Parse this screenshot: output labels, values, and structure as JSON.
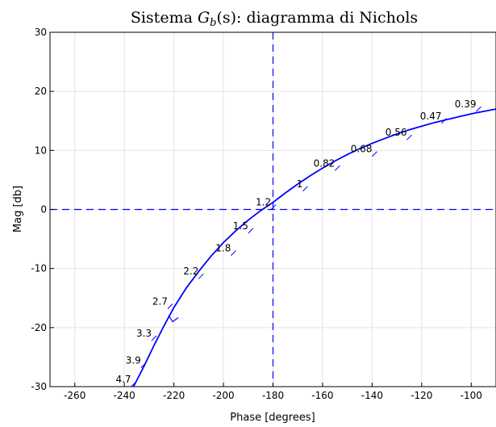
{
  "chart_data": {
    "type": "line",
    "title_prefix": "Sistema ",
    "title_math": "G",
    "title_sub": "b",
    "title_arg": "(s)",
    "title_suffix": ": diagramma di Nichols",
    "xlabel": "Phase [degrees]",
    "ylabel": "Mag [db]",
    "xlim": [
      -270,
      -90
    ],
    "ylim": [
      -30,
      30
    ],
    "xticks": [
      -260,
      -240,
      -220,
      -200,
      -180,
      -160,
      -140,
      -120,
      -100
    ],
    "yticks": [
      -30,
      -20,
      -10,
      0,
      10,
      20,
      30
    ],
    "grid": true,
    "reference_lines": [
      {
        "axis": "x",
        "value": -180,
        "color": "#0000ff",
        "style": "dashed"
      },
      {
        "axis": "y",
        "value": 0,
        "color": "#0000ff",
        "style": "dashed"
      }
    ],
    "series_color": "#0000ff",
    "curve": {
      "x": [
        -236.3,
        -232,
        -228,
        -224,
        -220,
        -215,
        -210,
        -205,
        -200,
        -195,
        -190,
        -185,
        -180,
        -175,
        -170,
        -165,
        -160,
        -155,
        -150,
        -145,
        -140,
        -135,
        -130,
        -125,
        -120,
        -115,
        -110,
        -105,
        -100,
        -95,
        -90
      ],
      "y": [
        -30,
        -26.5,
        -23.0,
        -19.7,
        -16.6,
        -13.3,
        -10.5,
        -7.9,
        -5.6,
        -3.6,
        -1.8,
        -0.2,
        1.2,
        2.8,
        4.3,
        5.7,
        7.0,
        8.2,
        9.3,
        10.3,
        11.2,
        12.0,
        12.8,
        13.5,
        14.1,
        14.7,
        15.2,
        15.7,
        16.2,
        16.6,
        17.0
      ]
    },
    "frequency_labels": [
      {
        "label": "4.7",
        "x": -236.3,
        "y": -29.6
      },
      {
        "label": "3.9",
        "x": -232.3,
        "y": -26.4
      },
      {
        "label": "3.3",
        "x": -228.0,
        "y": -21.8
      },
      {
        "label": "2.7",
        "x": -221.5,
        "y": -16.4
      },
      {
        "label": "2.2",
        "x": -209.0,
        "y": -11.3
      },
      {
        "label": "1.8",
        "x": -196.0,
        "y": -7.4
      },
      {
        "label": "1.5",
        "x": -189.0,
        "y": -3.6
      },
      {
        "label": "1.2",
        "x": -179.8,
        "y": 0.4
      },
      {
        "label": "1",
        "x": -167.0,
        "y": 3.5
      },
      {
        "label": "0.82",
        "x": -154.0,
        "y": 7.0
      },
      {
        "label": "0.68",
        "x": -139.0,
        "y": 9.4
      },
      {
        "label": "0.56",
        "x": -125.0,
        "y": 12.2
      },
      {
        "label": "0.47",
        "x": -111.0,
        "y": 15.0
      },
      {
        "label": "0.39",
        "x": -97.0,
        "y": 17.0
      }
    ]
  }
}
